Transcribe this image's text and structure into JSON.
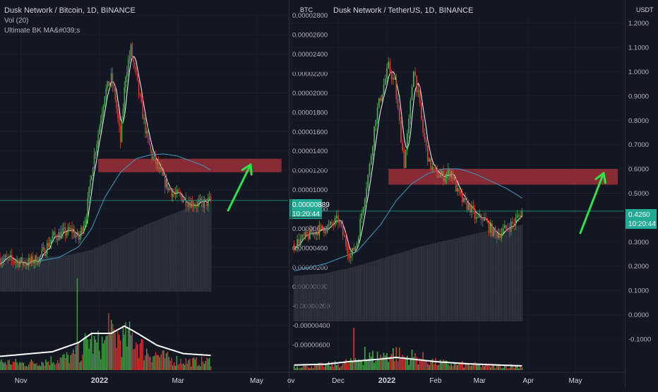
{
  "chart_data": [
    {
      "type": "candlestick",
      "title": "Dusk Network / Bitcoin, 1D, BINANCE",
      "indicators": [
        "Vol (20)",
        "Ultimate BK MA&#039;s"
      ],
      "currency_label": "BTC",
      "y_ticks": [
        "0.00002800",
        "0.00002600",
        "0.00002400",
        "0.00002200",
        "0.00002000",
        "0.00001800",
        "0.00001600",
        "0.00001400",
        "0.00001200",
        "0.00001000",
        "0.00000800",
        "0.00000600",
        "0.00000400",
        "0.00000200",
        "0.00000000",
        "-0.00000200",
        "-0.00000400",
        "-0.00000600"
      ],
      "ylim": [
        -6.8e-06,
        2.82e-05
      ],
      "last_price": "0.00000889",
      "countdown": "10:20:44",
      "x_labels": [
        "Nov",
        "2022",
        "Mar",
        "May"
      ],
      "x_label_days": [
        16,
        76,
        136,
        196
      ],
      "x_range_days": [
        0,
        220
      ],
      "last_day": 161,
      "zone": {
        "from_day": 75,
        "to_day": 215,
        "low": 1.18e-05,
        "high": 1.32e-05
      },
      "close_anchors": [
        [
          0,
          2.9e-06
        ],
        [
          10,
          2.7e-06
        ],
        [
          20,
          2.4e-06
        ],
        [
          30,
          2.9e-06
        ],
        [
          40,
          5.1e-06
        ],
        [
          48,
          5.5e-06
        ],
        [
          55,
          5.8e-06
        ],
        [
          60,
          4.9e-06
        ],
        [
          66,
          7.5e-06
        ],
        [
          70,
          1.2e-05
        ],
        [
          75,
          1.58e-05
        ],
        [
          80,
          2e-05
        ],
        [
          85,
          2.15e-05
        ],
        [
          88,
          1.95e-05
        ],
        [
          92,
          1.5e-05
        ],
        [
          96,
          2.2e-05
        ],
        [
          100,
          2.45e-05
        ],
        [
          104,
          2.15e-05
        ],
        [
          108,
          1.85e-05
        ],
        [
          112,
          1.55e-05
        ],
        [
          116,
          1.35e-05
        ],
        [
          120,
          1.25e-05
        ],
        [
          124,
          1.12e-05
        ],
        [
          128,
          1.03e-05
        ],
        [
          133,
          9.5e-06
        ],
        [
          138,
          9.3e-06
        ],
        [
          143,
          8.8e-06
        ],
        [
          148,
          8.6e-06
        ],
        [
          153,
          8.5e-06
        ],
        [
          158,
          8.7e-06
        ],
        [
          161,
          8.9e-06
        ]
      ],
      "ma_anchors": [
        [
          20,
          2.4e-06
        ],
        [
          45,
          3e-06
        ],
        [
          60,
          4.1e-06
        ],
        [
          70,
          6e-06
        ],
        [
          80,
          9.2e-06
        ],
        [
          92,
          1.18e-05
        ],
        [
          104,
          1.32e-05
        ],
        [
          115,
          1.36e-05
        ],
        [
          125,
          1.37e-05
        ],
        [
          135,
          1.35e-05
        ],
        [
          145,
          1.3e-05
        ],
        [
          155,
          1.25e-05
        ],
        [
          161,
          1.2e-05
        ]
      ],
      "volume_anchors": [
        [
          0,
          0.1
        ],
        [
          20,
          0.08
        ],
        [
          40,
          0.12
        ],
        [
          55,
          0.16
        ],
        [
          62,
          0.22
        ],
        [
          68,
          0.38
        ],
        [
          72,
          0.3
        ],
        [
          80,
          0.32
        ],
        [
          88,
          0.42
        ],
        [
          95,
          0.36
        ],
        [
          102,
          0.4
        ],
        [
          110,
          0.24
        ],
        [
          120,
          0.18
        ],
        [
          130,
          0.13
        ],
        [
          140,
          0.11
        ],
        [
          150,
          0.1
        ],
        [
          161,
          0.11
        ]
      ],
      "spikes": [
        [
          59,
          1.0
        ],
        [
          83,
          0.62
        ]
      ],
      "vol_ma_anchors": [
        [
          0,
          0.15
        ],
        [
          40,
          0.2
        ],
        [
          60,
          0.3
        ],
        [
          70,
          0.4
        ],
        [
          85,
          0.4
        ],
        [
          95,
          0.48
        ],
        [
          105,
          0.4
        ],
        [
          120,
          0.27
        ],
        [
          140,
          0.18
        ],
        [
          161,
          0.16
        ]
      ],
      "osc_anchors": [
        [
          0,
          2.9e-06
        ],
        [
          25,
          3e-06
        ],
        [
          50,
          3.2e-06
        ],
        [
          70,
          3.8e-06
        ],
        [
          90,
          5e-06
        ],
        [
          110,
          6.3e-06
        ],
        [
          130,
          7.4e-06
        ],
        [
          145,
          8.2e-06
        ],
        [
          161,
          8.6e-06
        ]
      ]
    },
    {
      "type": "candlestick",
      "title": "Dusk Network / TetherUS, 1D, BINANCE",
      "currency_label": "USDT",
      "y_ticks": [
        "1.2000",
        "1.1000",
        "1.0000",
        "0.9000",
        "0.8000",
        "0.7000",
        "0.6000",
        "0.5000",
        "0.4000",
        "0.3000",
        "0.2000",
        "0.1000",
        "0.0000",
        "-0.1000"
      ],
      "ylim": [
        -0.135,
        1.225
      ],
      "last_price": "0.4260",
      "countdown": "10:20:44",
      "x_labels": [
        "ov",
        "Dec",
        "2022",
        "Feb",
        "Mar",
        "Apr",
        "May"
      ],
      "x_label_days": [
        -2,
        28,
        59,
        90,
        118,
        149,
        179
      ],
      "x_range_days": [
        -3,
        210
      ],
      "last_day": 145,
      "zone": {
        "from_day": 60,
        "to_day": 206,
        "low": 0.535,
        "high": 0.6
      },
      "close_anchors": [
        [
          0,
          0.29
        ],
        [
          5,
          0.31
        ],
        [
          10,
          0.33
        ],
        [
          15,
          0.35
        ],
        [
          22,
          0.36
        ],
        [
          28,
          0.39
        ],
        [
          33,
          0.29
        ],
        [
          36,
          0.24
        ],
        [
          40,
          0.3
        ],
        [
          44,
          0.46
        ],
        [
          48,
          0.61
        ],
        [
          52,
          0.82
        ],
        [
          56,
          0.92
        ],
        [
          60,
          1.02
        ],
        [
          64,
          0.95
        ],
        [
          66,
          0.84
        ],
        [
          70,
          0.62
        ],
        [
          73,
          0.79
        ],
        [
          76,
          1.02
        ],
        [
          79,
          0.9
        ],
        [
          82,
          0.75
        ],
        [
          86,
          0.62
        ],
        [
          90,
          0.58
        ],
        [
          95,
          0.57
        ],
        [
          100,
          0.59
        ],
        [
          104,
          0.5
        ],
        [
          108,
          0.46
        ],
        [
          112,
          0.44
        ],
        [
          116,
          0.39
        ],
        [
          120,
          0.4
        ],
        [
          124,
          0.36
        ],
        [
          128,
          0.33
        ],
        [
          132,
          0.34
        ],
        [
          136,
          0.36
        ],
        [
          140,
          0.38
        ],
        [
          145,
          0.426
        ]
      ],
      "ma_anchors": [
        [
          0,
          0.18
        ],
        [
          20,
          0.21
        ],
        [
          40,
          0.26
        ],
        [
          55,
          0.37
        ],
        [
          65,
          0.47
        ],
        [
          75,
          0.54
        ],
        [
          85,
          0.58
        ],
        [
          95,
          0.6
        ],
        [
          105,
          0.6
        ],
        [
          115,
          0.58
        ],
        [
          125,
          0.55
        ],
        [
          135,
          0.52
        ],
        [
          145,
          0.48
        ]
      ],
      "volume_anchors": [
        [
          0,
          0.1
        ],
        [
          15,
          0.12
        ],
        [
          30,
          0.16
        ],
        [
          38,
          0.25
        ],
        [
          45,
          0.33
        ],
        [
          52,
          0.35
        ],
        [
          58,
          0.38
        ],
        [
          64,
          0.45
        ],
        [
          70,
          0.34
        ],
        [
          76,
          0.36
        ],
        [
          82,
          0.3
        ],
        [
          90,
          0.2
        ],
        [
          100,
          0.16
        ],
        [
          110,
          0.14
        ],
        [
          120,
          0.12
        ],
        [
          130,
          0.11
        ],
        [
          145,
          0.1
        ]
      ],
      "spikes": [
        [
          38,
          1.0
        ],
        [
          45,
          0.55
        ],
        [
          59,
          0.4
        ]
      ],
      "vol_ma_anchors": [
        [
          0,
          0.12
        ],
        [
          20,
          0.14
        ],
        [
          35,
          0.2
        ],
        [
          45,
          0.23
        ],
        [
          55,
          0.26
        ],
        [
          65,
          0.3
        ],
        [
          75,
          0.26
        ],
        [
          90,
          0.2
        ],
        [
          110,
          0.15
        ],
        [
          130,
          0.12
        ],
        [
          145,
          0.1
        ]
      ],
      "osc_anchors": [
        [
          0,
          0.16
        ],
        [
          20,
          0.17
        ],
        [
          40,
          0.2
        ],
        [
          60,
          0.24
        ],
        [
          80,
          0.28
        ],
        [
          100,
          0.31
        ],
        [
          120,
          0.34
        ],
        [
          145,
          0.37
        ]
      ]
    }
  ]
}
